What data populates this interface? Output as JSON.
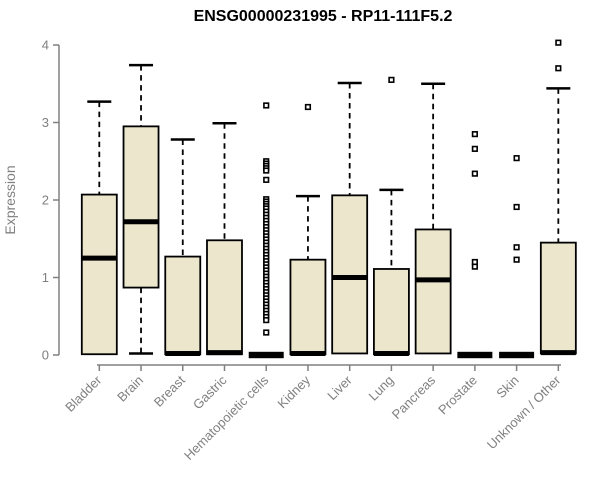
{
  "page": {
    "background": "#ffffff"
  },
  "chart_data": {
    "type": "boxplot",
    "title": "ENSG00000231995 - RP11-111F5.2",
    "xlabel": "",
    "ylabel": "Expression",
    "ylim": [
      0,
      4
    ],
    "yticks": [
      0,
      1,
      2,
      3,
      4
    ],
    "grid": false,
    "legend_position": "none",
    "colors": {
      "box_fill": "#ECE7CC",
      "box_stroke": "#000000",
      "median": "#000000",
      "whisker": "#000000",
      "outlier_stroke": "#000000",
      "outlier_fill": "#ffffff",
      "axis": "#808080",
      "title": "#000000"
    },
    "categories": [
      "Bladder",
      "Brain",
      "Breast",
      "Gastric",
      "Hematopoietic cells",
      "Kidney",
      "Liver",
      "Lung",
      "Pancreas",
      "Prostate",
      "Skin",
      "Unknown / Other"
    ],
    "boxes": [
      {
        "category": "Bladder",
        "q1": 0.01,
        "median": 1.25,
        "q3": 2.07,
        "whisker_low": 0.01,
        "whisker_high": 3.27,
        "outliers": []
      },
      {
        "category": "Brain",
        "q1": 0.87,
        "median": 1.72,
        "q3": 2.95,
        "whisker_low": 0.02,
        "whisker_high": 3.74,
        "outliers": []
      },
      {
        "category": "Breast",
        "q1": 0.01,
        "median": 0.02,
        "q3": 1.27,
        "whisker_low": 0.01,
        "whisker_high": 2.78,
        "outliers": []
      },
      {
        "category": "Gastric",
        "q1": 0.01,
        "median": 0.03,
        "q3": 1.48,
        "whisker_low": 0.01,
        "whisker_high": 2.99,
        "outliers": []
      },
      {
        "category": "Hematopoietic cells",
        "q1": 0.0,
        "median": 0.0,
        "q3": 0.0,
        "whisker_low": 0.0,
        "whisker_high": 0.0,
        "outliers": [
          3.22,
          2.5,
          2.47,
          2.44,
          2.41,
          2.38,
          2.26,
          2.01,
          1.98,
          1.95,
          1.92,
          1.89,
          1.85,
          1.81,
          1.77,
          1.73,
          1.69,
          1.65,
          1.61,
          1.57,
          1.53,
          1.49,
          1.45,
          1.41,
          1.37,
          1.33,
          1.29,
          1.25,
          1.21,
          1.17,
          1.13,
          1.09,
          1.05,
          1.01,
          0.97,
          0.93,
          0.89,
          0.85,
          0.81,
          0.77,
          0.73,
          0.69,
          0.65,
          0.61,
          0.57,
          0.53,
          0.49,
          0.45,
          0.29
        ]
      },
      {
        "category": "Kidney",
        "q1": 0.01,
        "median": 0.02,
        "q3": 1.23,
        "whisker_low": 0.01,
        "whisker_high": 2.05,
        "outliers": [
          3.2
        ]
      },
      {
        "category": "Liver",
        "q1": 0.02,
        "median": 1.0,
        "q3": 2.06,
        "whisker_low": 0.02,
        "whisker_high": 3.51,
        "outliers": []
      },
      {
        "category": "Lung",
        "q1": 0.01,
        "median": 0.02,
        "q3": 1.11,
        "whisker_low": 0.01,
        "whisker_high": 2.13,
        "outliers": [
          3.55
        ]
      },
      {
        "category": "Pancreas",
        "q1": 0.02,
        "median": 0.97,
        "q3": 1.62,
        "whisker_low": 0.02,
        "whisker_high": 3.5,
        "outliers": []
      },
      {
        "category": "Prostate",
        "q1": 0.0,
        "median": 0.0,
        "q3": 0.0,
        "whisker_low": 0.0,
        "whisker_high": 0.0,
        "outliers": [
          2.85,
          2.66,
          2.34,
          1.2,
          1.14
        ]
      },
      {
        "category": "Skin",
        "q1": 0.0,
        "median": 0.0,
        "q3": 0.0,
        "whisker_low": 0.0,
        "whisker_high": 0.0,
        "outliers": [
          2.54,
          1.91,
          1.39,
          1.23
        ]
      },
      {
        "category": "Unknown / Other",
        "q1": 0.02,
        "median": 0.03,
        "q3": 1.45,
        "whisker_low": 0.02,
        "whisker_high": 3.44,
        "outliers": [
          4.03,
          3.7
        ]
      }
    ]
  }
}
